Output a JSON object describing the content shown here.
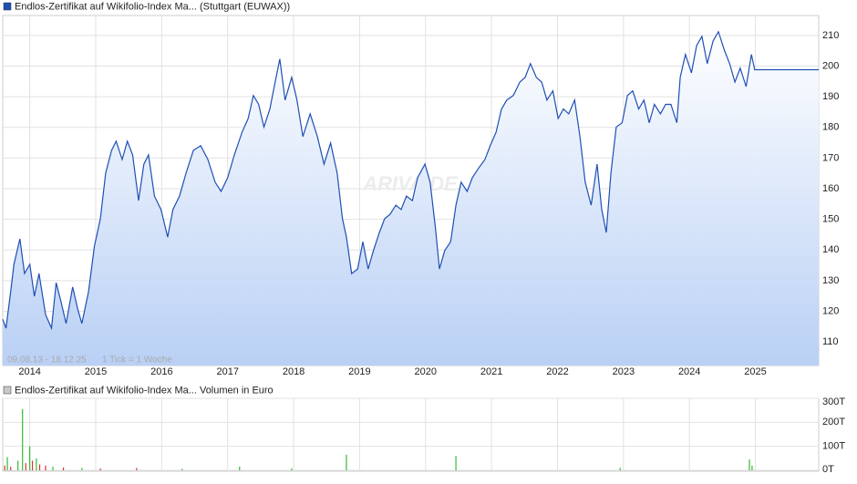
{
  "chart_data": [
    {
      "type": "line",
      "legend": "Endlos-Zertifikat auf Wikifolio-Index Ma... (Stuttgart (EUWAX))",
      "info": "09.08.13 - 18.12.25",
      "tick_info": "1 Tick = 1 Woche",
      "watermark": "ARIVA.DE",
      "color": "#1f4fb4",
      "fill_top": "#ffffff",
      "fill_bottom": "#b9d0f5",
      "grid": true,
      "xlim": [
        2013.59,
        2025.96
      ],
      "xticks": [
        2014,
        2015,
        2016,
        2017,
        2018,
        2019,
        2020,
        2021,
        2022,
        2023,
        2024,
        2025
      ],
      "ylim": [
        102.3,
        216.5
      ],
      "yticks": [
        110,
        120,
        130,
        140,
        150,
        160,
        170,
        180,
        190,
        200,
        210
      ],
      "series": [
        {
          "name": "Endlos-Zertifikat auf Wikifolio-Index Ma... (Stuttgart (EUWAX))",
          "x": [
            2013.59,
            2013.64,
            2013.71,
            2013.76,
            2013.85,
            2013.92,
            2014.0,
            2014.07,
            2014.14,
            2014.24,
            2014.33,
            2014.4,
            2014.47,
            2014.55,
            2014.65,
            2014.73,
            2014.79,
            2014.89,
            2014.98,
            2015.07,
            2015.15,
            2015.24,
            2015.31,
            2015.4,
            2015.48,
            2015.56,
            2015.65,
            2015.73,
            2015.8,
            2015.89,
            2015.99,
            2016.09,
            2016.17,
            2016.27,
            2016.37,
            2016.48,
            2016.59,
            2016.7,
            2016.81,
            2016.9,
            2017.0,
            2017.1,
            2017.22,
            2017.31,
            2017.39,
            2017.47,
            2017.55,
            2017.64,
            2017.72,
            2017.79,
            2017.87,
            2017.97,
            2018.05,
            2018.14,
            2018.25,
            2018.36,
            2018.46,
            2018.56,
            2018.66,
            2018.74,
            2018.8,
            2018.88,
            2018.97,
            2019.05,
            2019.13,
            2019.21,
            2019.3,
            2019.38,
            2019.46,
            2019.55,
            2019.63,
            2019.71,
            2019.8,
            2019.88,
            2019.99,
            2020.07,
            2020.15,
            2020.21,
            2020.29,
            2020.38,
            2020.46,
            2020.54,
            2020.63,
            2020.71,
            2020.8,
            2020.9,
            2020.98,
            2021.07,
            2021.15,
            2021.23,
            2021.33,
            2021.43,
            2021.51,
            2021.59,
            2021.68,
            2021.76,
            2021.84,
            2021.93,
            2022.01,
            2022.09,
            2022.17,
            2022.26,
            2022.34,
            2022.42,
            2022.51,
            2022.6,
            2022.67,
            2022.74,
            2022.81,
            2022.89,
            2022.98,
            2023.06,
            2023.14,
            2023.23,
            2023.31,
            2023.39,
            2023.47,
            2023.56,
            2023.64,
            2023.72,
            2023.81,
            2023.86,
            2023.94,
            2024.03,
            2024.11,
            2024.19,
            2024.27,
            2024.36,
            2024.44,
            2024.53,
            2024.61,
            2024.69,
            2024.77,
            2024.86,
            2024.94,
            2024.99,
            2025.16,
            2025.96
          ],
          "values": [
            117.4,
            114.5,
            126.4,
            135.3,
            143.6,
            132.3,
            135.3,
            124.9,
            132.3,
            118.9,
            114.5,
            129.3,
            123.4,
            116.0,
            127.9,
            120.4,
            116.0,
            126.4,
            141.3,
            150.2,
            165.1,
            172.5,
            175.5,
            169.5,
            175.5,
            171.0,
            156.1,
            168.0,
            171.0,
            157.6,
            153.2,
            144.2,
            153.2,
            157.6,
            165.1,
            172.5,
            174.0,
            169.5,
            162.1,
            159.1,
            163.6,
            171.0,
            178.5,
            182.9,
            190.4,
            187.5,
            180.1,
            186.0,
            194.8,
            202.3,
            188.9,
            196.3,
            188.9,
            177.0,
            184.4,
            177.0,
            168.0,
            174.9,
            165.1,
            150.2,
            144.2,
            132.3,
            133.8,
            142.7,
            133.8,
            139.8,
            145.7,
            150.2,
            151.6,
            154.6,
            153.2,
            157.6,
            156.1,
            163.6,
            168.0,
            162.1,
            147.2,
            133.8,
            139.8,
            142.7,
            154.6,
            162.1,
            159.1,
            163.6,
            166.6,
            169.5,
            174.0,
            178.5,
            185.9,
            188.9,
            190.4,
            194.8,
            196.3,
            200.8,
            196.3,
            194.8,
            188.9,
            191.9,
            182.9,
            186.0,
            184.4,
            188.9,
            177.0,
            162.1,
            154.6,
            168.0,
            153.2,
            145.7,
            165.1,
            180.1,
            181.5,
            190.4,
            191.9,
            186.0,
            188.9,
            181.5,
            187.5,
            184.4,
            187.5,
            187.5,
            181.5,
            196.3,
            203.8,
            197.8,
            206.7,
            209.7,
            200.8,
            208.2,
            211.2,
            205.2,
            200.8,
            194.8,
            199.3,
            193.3,
            203.8,
            198.8,
            198.8,
            198.8
          ]
        }
      ]
    },
    {
      "type": "bar",
      "legend": "Endlos-Zertifikat auf Wikifolio-Index Ma... Volumen in Euro",
      "legend_color": "#c8c8c8",
      "grid": true,
      "xlim": [
        2013.59,
        2025.96
      ],
      "xticks": [
        2014,
        2015,
        2016,
        2017,
        2018,
        2019,
        2020,
        2021,
        2022,
        2023,
        2024,
        2025
      ],
      "ylim": [
        0,
        300
      ],
      "yticks": [
        {
          "value": 0,
          "label": "0T"
        },
        {
          "value": 100,
          "label": "100T"
        },
        {
          "value": 200,
          "label": "200T"
        },
        {
          "value": 300,
          "label": "300T"
        }
      ],
      "x": [
        2013.62,
        2013.66,
        2013.71,
        2013.82,
        2013.89,
        2013.94,
        2014.0,
        2014.04,
        2014.1,
        2014.15,
        2014.24,
        2014.35,
        2014.51,
        2014.79,
        2015.07,
        2015.62,
        2016.31,
        2017.18,
        2017.97,
        2018.8,
        2020.46,
        2022.95,
        2024.91,
        2024.95
      ],
      "values": [
        20,
        55,
        15,
        40,
        255,
        30,
        100,
        40,
        50,
        25,
        20,
        15,
        12,
        10,
        8,
        10,
        6,
        15,
        8,
        65,
        60,
        10,
        45,
        20
      ],
      "colors": [
        "#d33",
        "#3b3",
        "#d33",
        "#3b3",
        "#3b3",
        "#d33",
        "#3b3",
        "#d33",
        "#3b3",
        "#d33",
        "#d33",
        "#3b3",
        "#d33",
        "#3b3",
        "#d33",
        "#d33",
        "#3b3",
        "#3b3",
        "#3b3",
        "#3b3",
        "#3b3",
        "#3b3",
        "#3b3",
        "#3b3"
      ]
    }
  ]
}
